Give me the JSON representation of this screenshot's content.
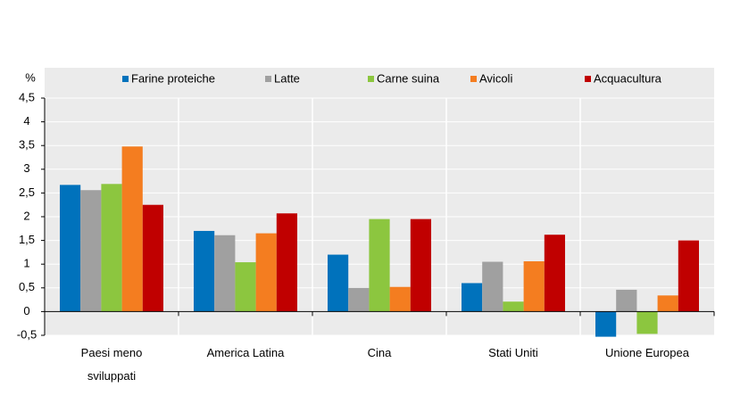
{
  "chart_data": {
    "type": "bar",
    "y_unit": "%",
    "categories": [
      "Paesi meno sviluppati",
      "America Latina",
      "Cina",
      "Stati Uniti",
      "Unione Europea"
    ],
    "series": [
      {
        "name": "Farine proteiche",
        "color": "#0072bc",
        "values": [
          2.67,
          1.7,
          1.2,
          0.6,
          -0.53
        ]
      },
      {
        "name": "Latte",
        "color": "#a0a0a0",
        "values": [
          2.56,
          1.61,
          0.5,
          1.05,
          0.46
        ]
      },
      {
        "name": "Carne suina",
        "color": "#8cc63f",
        "values": [
          2.69,
          1.04,
          1.95,
          0.21,
          -0.47
        ]
      },
      {
        "name": "Avicoli",
        "color": "#f47d20",
        "values": [
          3.48,
          1.65,
          0.52,
          1.06,
          0.34
        ]
      },
      {
        "name": "Acquacultura",
        "color": "#c00000",
        "values": [
          2.25,
          2.07,
          1.95,
          1.62,
          1.5
        ]
      }
    ],
    "ylim": [
      -0.5,
      4.5
    ],
    "yticks": [
      {
        "value": -0.5,
        "label": "-0,5"
      },
      0,
      {
        "value": 0.5,
        "label": "0,5"
      },
      1,
      {
        "value": 1.5,
        "label": "1,5"
      },
      2,
      {
        "value": 2.5,
        "label": "2,5"
      },
      3,
      {
        "value": 3.5,
        "label": "3,5"
      },
      4,
      {
        "value": 4.5,
        "label": "4,5"
      }
    ],
    "grid": true
  }
}
